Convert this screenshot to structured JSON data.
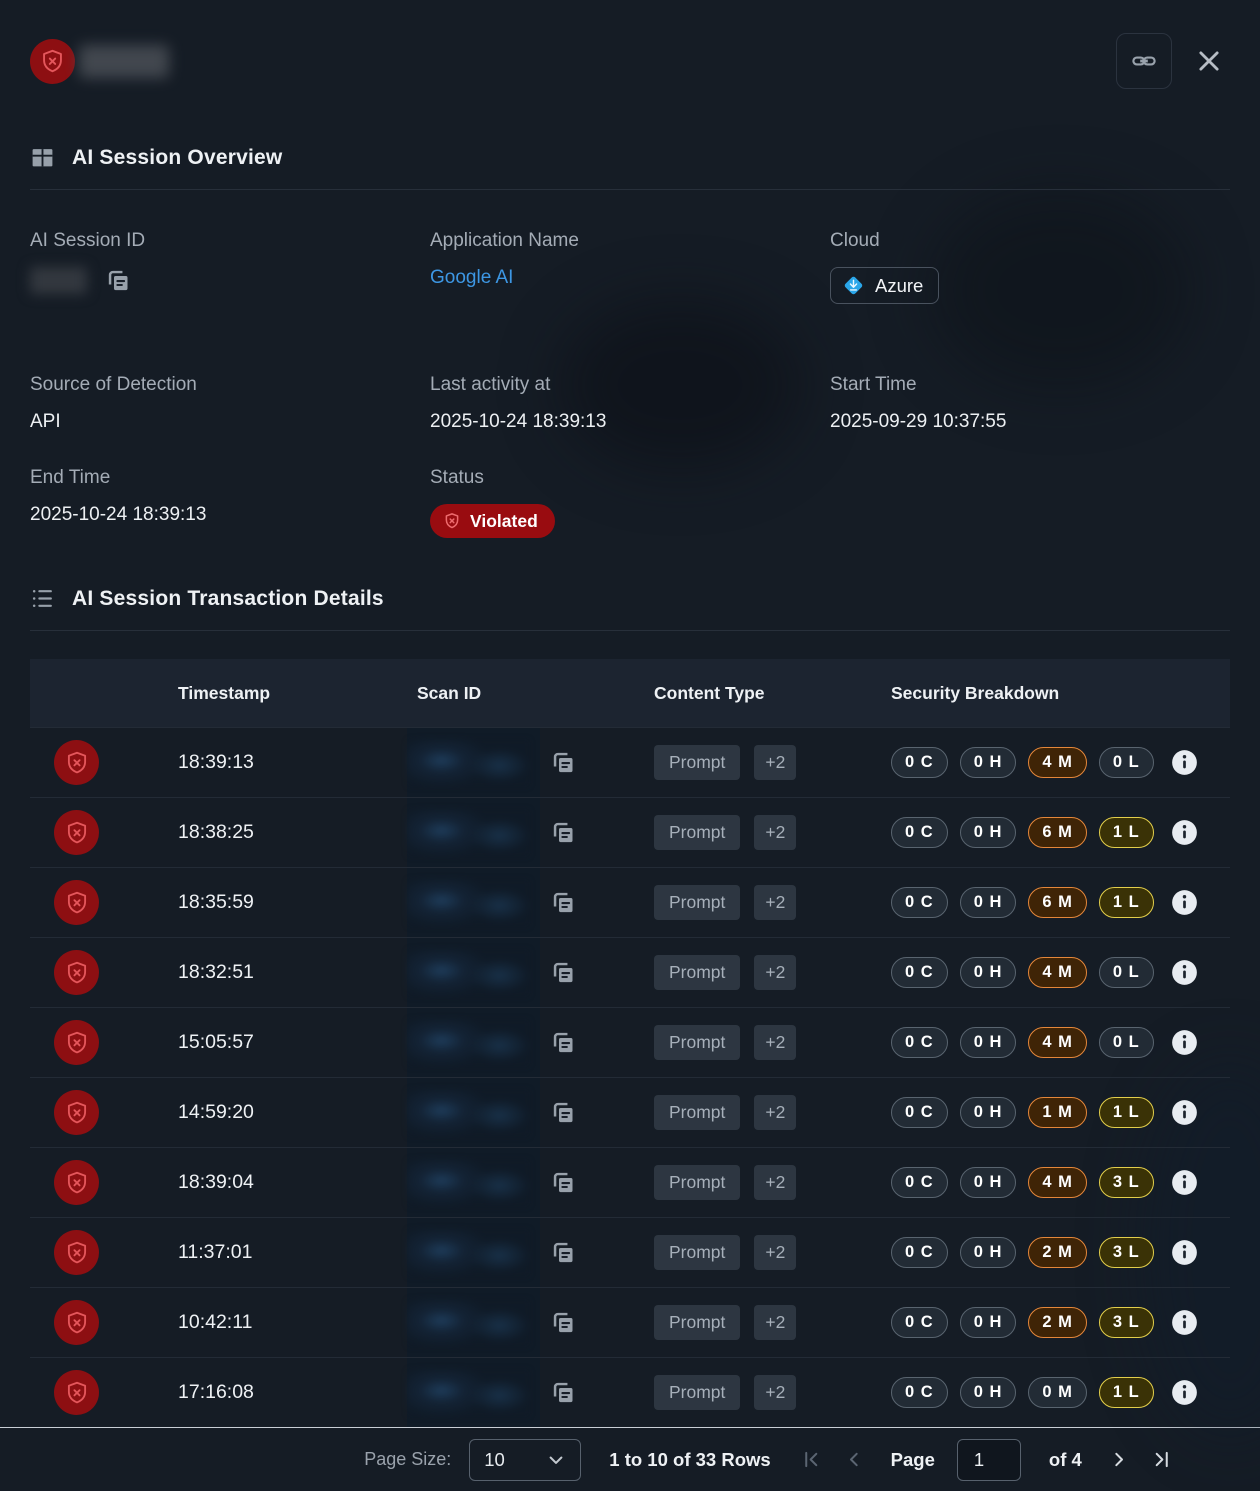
{
  "overview": {
    "title": "AI Session Overview",
    "session_id_label": "AI Session ID",
    "application_name_label": "Application Name",
    "application_name": "Google AI",
    "cloud_label": "Cloud",
    "cloud": "Azure",
    "source_label": "Source of Detection",
    "source": "API",
    "last_activity_label": "Last activity at",
    "last_activity": "2025-10-24 18:39:13",
    "start_time_label": "Start Time",
    "start_time": "2025-09-29 10:37:55",
    "end_time_label": "End Time",
    "end_time": "2025-10-24 18:39:13",
    "status_label": "Status",
    "status": "Violated"
  },
  "transactions": {
    "title": "AI Session Transaction Details",
    "columns": {
      "timestamp": "Timestamp",
      "scan_id": "Scan ID",
      "content_type": "Content Type",
      "security_breakdown": "Security Breakdown"
    },
    "severity_letters": {
      "critical": "C",
      "high": "H",
      "medium": "M",
      "low": "L"
    },
    "rows": [
      {
        "timestamp": "18:39:13",
        "content_type": "Prompt",
        "more": "+2",
        "critical": 0,
        "high": 0,
        "medium": 4,
        "low": 0
      },
      {
        "timestamp": "18:38:25",
        "content_type": "Prompt",
        "more": "+2",
        "critical": 0,
        "high": 0,
        "medium": 6,
        "low": 1
      },
      {
        "timestamp": "18:35:59",
        "content_type": "Prompt",
        "more": "+2",
        "critical": 0,
        "high": 0,
        "medium": 6,
        "low": 1
      },
      {
        "timestamp": "18:32:51",
        "content_type": "Prompt",
        "more": "+2",
        "critical": 0,
        "high": 0,
        "medium": 4,
        "low": 0
      },
      {
        "timestamp": "15:05:57",
        "content_type": "Prompt",
        "more": "+2",
        "critical": 0,
        "high": 0,
        "medium": 4,
        "low": 0
      },
      {
        "timestamp": "14:59:20",
        "content_type": "Prompt",
        "more": "+2",
        "critical": 0,
        "high": 0,
        "medium": 1,
        "low": 1
      },
      {
        "timestamp": "18:39:04",
        "content_type": "Prompt",
        "more": "+2",
        "critical": 0,
        "high": 0,
        "medium": 4,
        "low": 3
      },
      {
        "timestamp": "11:37:01",
        "content_type": "Prompt",
        "more": "+2",
        "critical": 0,
        "high": 0,
        "medium": 2,
        "low": 3
      },
      {
        "timestamp": "10:42:11",
        "content_type": "Prompt",
        "more": "+2",
        "critical": 0,
        "high": 0,
        "medium": 2,
        "low": 3
      },
      {
        "timestamp": "17:16:08",
        "content_type": "Prompt",
        "more": "+2",
        "critical": 0,
        "high": 0,
        "medium": 0,
        "low": 1
      }
    ]
  },
  "pagination": {
    "page_size_label": "Page Size:",
    "page_size": "10",
    "rows_text": "1 to 10 of 33 Rows",
    "page_label": "Page",
    "page_value": "1",
    "total_pages_text": "of 4"
  },
  "colors": {
    "violation_red": "#8d0f12",
    "status_badge_red": "#990c10",
    "medium_orange": "#e5873a",
    "low_yellow": "#e3cf4b",
    "link_blue": "#3d97e4",
    "azure_blue": "#2aa6e9"
  }
}
